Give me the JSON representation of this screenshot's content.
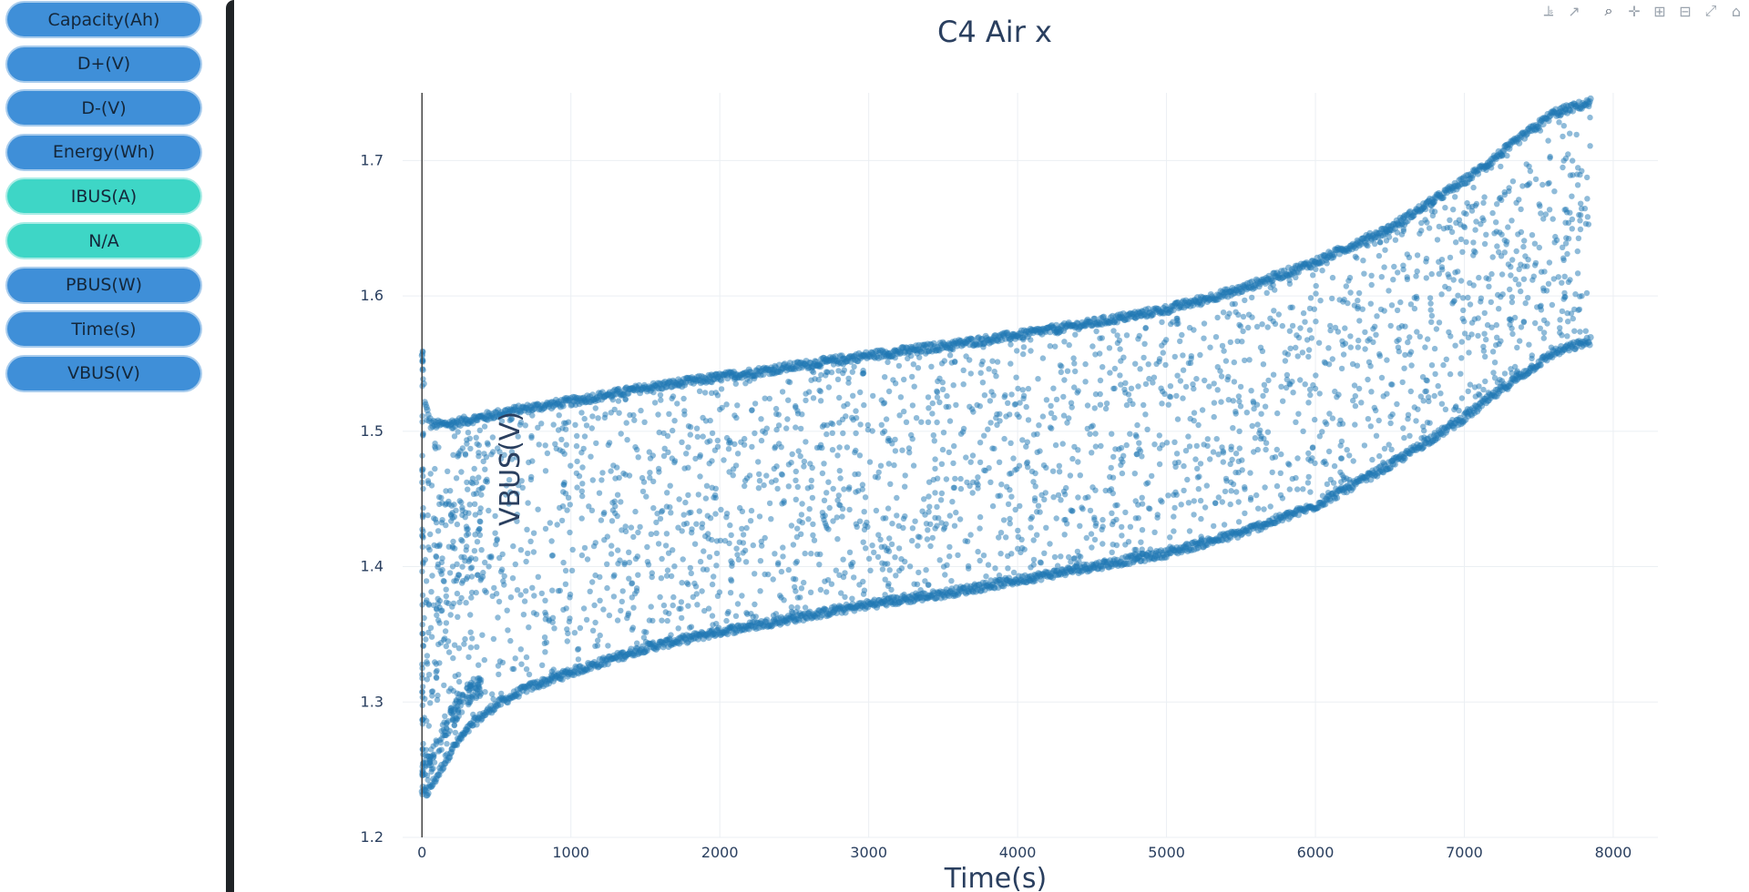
{
  "sidebar": {
    "buttons": [
      {
        "label": "Capacity(Ah)",
        "color": "#3f8fd8"
      },
      {
        "label": "D+(V)",
        "color": "#3f8fd8"
      },
      {
        "label": "D-(V)",
        "color": "#3f8fd8"
      },
      {
        "label": "Energy(Wh)",
        "color": "#3f8fd8"
      },
      {
        "label": "IBUS(A)",
        "color": "#3ed6c6"
      },
      {
        "label": "N/A",
        "color": "#3ed6c6"
      },
      {
        "label": "PBUS(W)",
        "color": "#3f8fd8"
      },
      {
        "label": "Time(s)",
        "color": "#3f8fd8"
      },
      {
        "label": "VBUS(V)",
        "color": "#3f8fd8"
      }
    ]
  },
  "modebar": {
    "icons": [
      "compare-hover-icon",
      "closest-hover-icon",
      "zoom-icon",
      "pan-icon",
      "zoom-in-icon",
      "zoom-out-icon",
      "autoscale-icon",
      "reset-axes-icon"
    ]
  },
  "chart_data": {
    "type": "scatter",
    "title": "C4 Air x",
    "xlabel": "Time(s)",
    "ylabel": "VBUS(V)",
    "xlim": [
      -130,
      8300
    ],
    "ylim": [
      1.2,
      1.75
    ],
    "xticks": [
      0,
      1000,
      2000,
      3000,
      4000,
      5000,
      6000,
      7000,
      8000
    ],
    "yticks": [
      1.2,
      1.3,
      1.4,
      1.5,
      1.6,
      1.7
    ],
    "grid": true,
    "legend": "none",
    "marker_color": "#1f77b4",
    "marker_opacity": 0.5,
    "upper_envelope": {
      "x": [
        0,
        20,
        60,
        150,
        300,
        600,
        1000,
        1500,
        2000,
        2500,
        3000,
        3500,
        4000,
        4500,
        5000,
        5500,
        6000,
        6500,
        7000,
        7300,
        7600,
        7850
      ],
      "y": [
        1.555,
        1.52,
        1.505,
        1.505,
        1.508,
        1.515,
        1.522,
        1.532,
        1.54,
        1.548,
        1.556,
        1.563,
        1.571,
        1.58,
        1.59,
        1.605,
        1.625,
        1.65,
        1.685,
        1.71,
        1.735,
        1.743
      ]
    },
    "lower_envelope": {
      "x": [
        0,
        30,
        100,
        200,
        350,
        500,
        700,
        1000,
        1500,
        2000,
        2500,
        3000,
        3500,
        4000,
        4500,
        5000,
        5500,
        6000,
        6500,
        7000,
        7300,
        7600,
        7850
      ],
      "y": [
        1.235,
        1.232,
        1.245,
        1.265,
        1.285,
        1.298,
        1.31,
        1.322,
        1.34,
        1.352,
        1.362,
        1.372,
        1.38,
        1.39,
        1.4,
        1.41,
        1.425,
        1.445,
        1.475,
        1.51,
        1.535,
        1.558,
        1.567
      ]
    },
    "fill_samples": 2600
  }
}
